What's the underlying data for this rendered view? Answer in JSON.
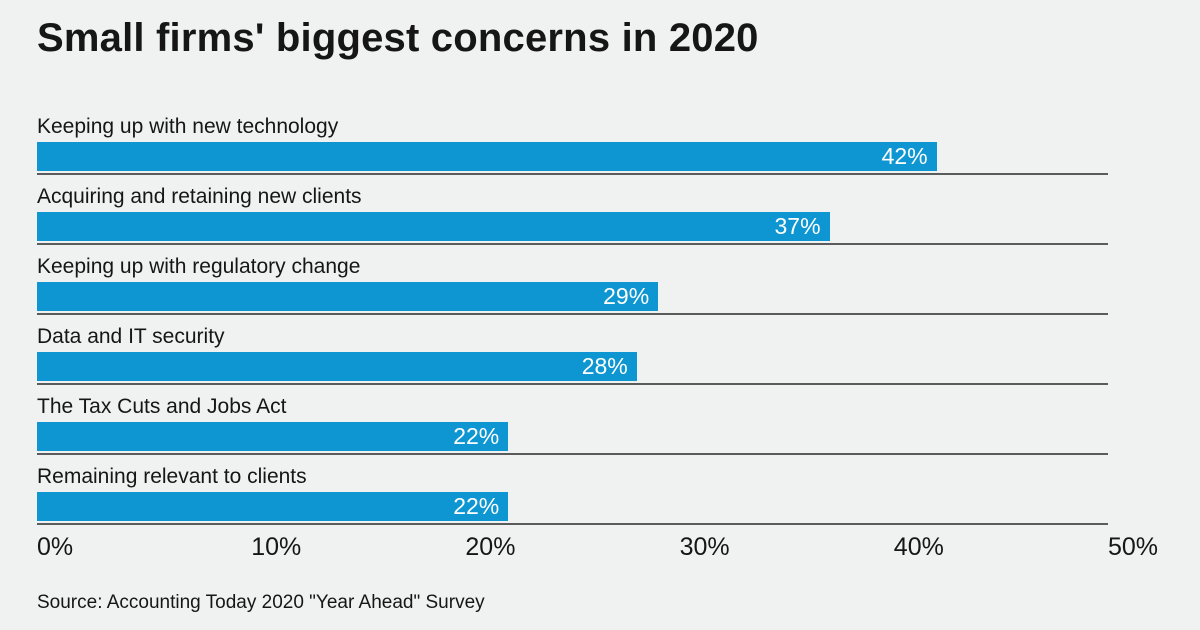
{
  "title": "Small firms' biggest concerns in 2020",
  "source": "Source: Accounting Today 2020 \"Year Ahead\" Survey",
  "colors": {
    "background": "#f0f1f1",
    "bar": "#0e96d3",
    "bar_label_text": "#ffffff",
    "text": "#161616",
    "baseline": "#5a5b5d"
  },
  "chart_data": {
    "type": "bar",
    "orientation": "horizontal",
    "title": "Small firms' biggest concerns in 2020",
    "categories": [
      "Keeping up with new technology",
      "Acquiring and retaining new clients",
      "Keeping up with regulatory change",
      "Data and IT security",
      "The Tax Cuts and Jobs Act",
      "Remaining relevant to clients"
    ],
    "values": [
      42,
      37,
      29,
      28,
      22,
      22
    ],
    "value_labels": [
      "42%",
      "37%",
      "29%",
      "28%",
      "22%",
      "22%"
    ],
    "xlabel": "",
    "ylabel": "",
    "xlim": [
      0,
      50
    ],
    "x_ticks": [
      {
        "label": "0%",
        "value": 0
      },
      {
        "label": "10%",
        "value": 10
      },
      {
        "label": "20%",
        "value": 20
      },
      {
        "label": "30%",
        "value": 30
      },
      {
        "label": "40%",
        "value": 40
      },
      {
        "label": "50%",
        "value": 50
      }
    ],
    "grid": "row-baseline-under-each-bar",
    "legend": "none"
  }
}
